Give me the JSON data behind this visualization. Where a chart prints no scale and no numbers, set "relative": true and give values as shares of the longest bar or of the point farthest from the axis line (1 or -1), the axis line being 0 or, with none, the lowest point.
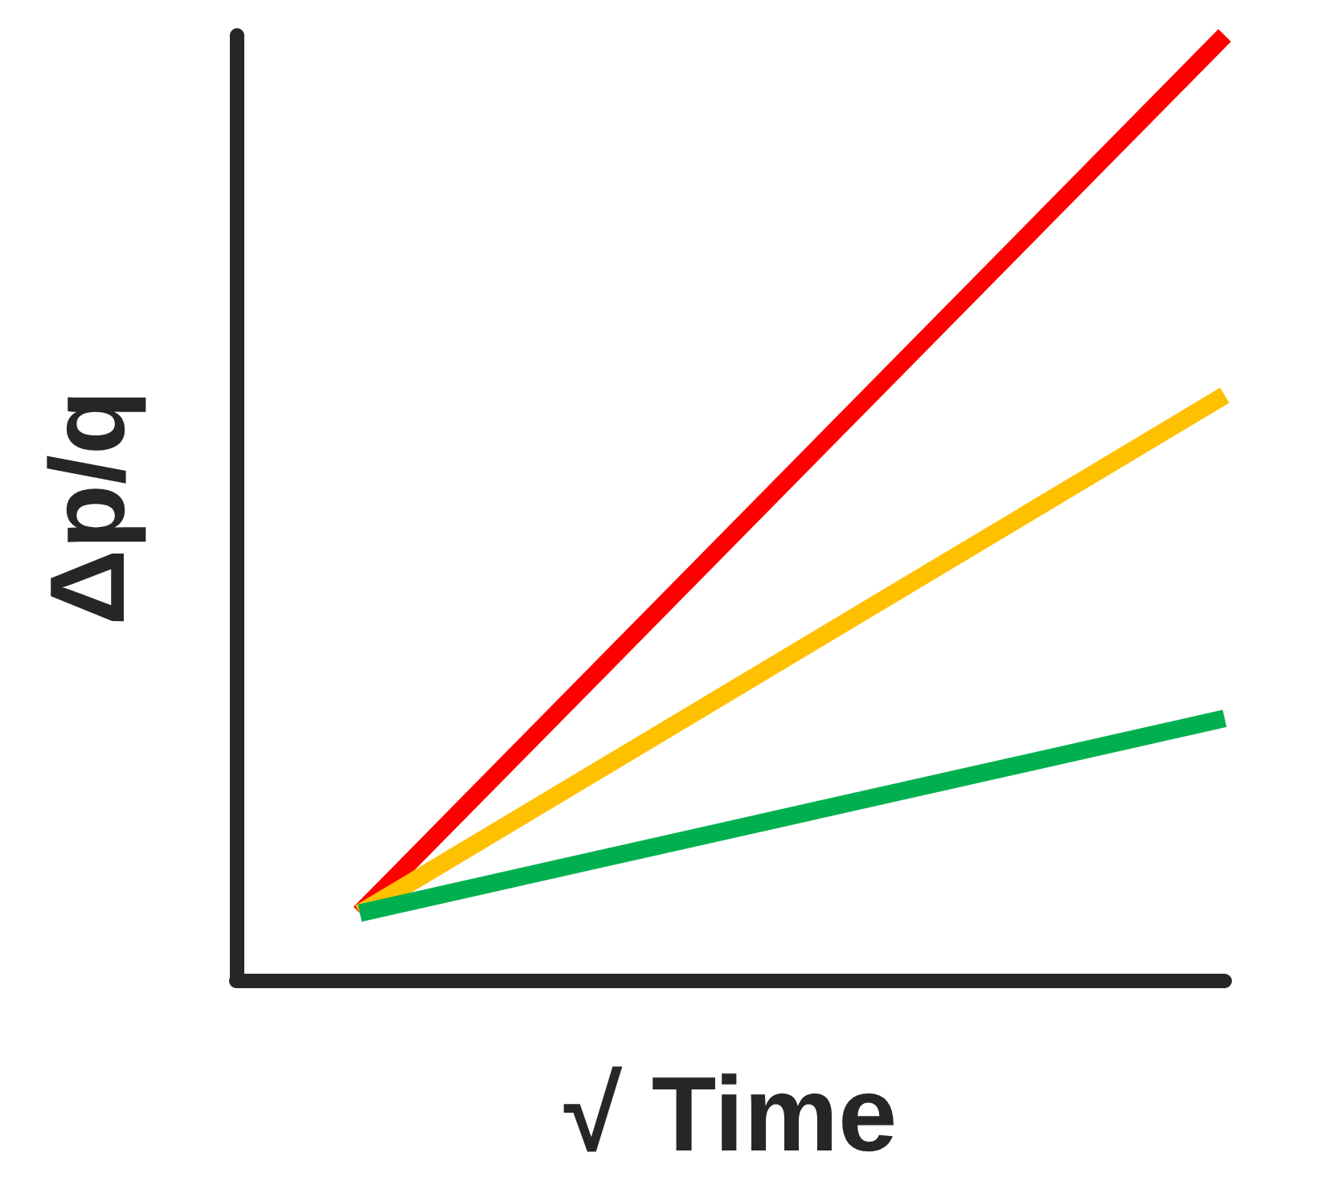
{
  "chart_data": {
    "type": "line",
    "relative": true,
    "xlabel": "√ Time",
    "ylabel": "Δp/q",
    "categories": [
      null,
      null,
      null,
      null,
      null,
      null,
      null,
      null,
      null
    ],
    "marker": "none",
    "series": [
      {
        "color": "#ff0000",
        "values": [
          null,
          0.071,
          null,
          null,
          null,
          null,
          null,
          null,
          1
        ]
      },
      {
        "color": "#ffc000",
        "values": [
          null,
          0.071,
          null,
          null,
          null,
          null,
          null,
          null,
          0.619
        ]
      },
      {
        "color": "#00b050",
        "values": [
          null,
          0.071,
          null,
          null,
          null,
          null,
          null,
          null,
          0.277
        ]
      }
    ]
  }
}
